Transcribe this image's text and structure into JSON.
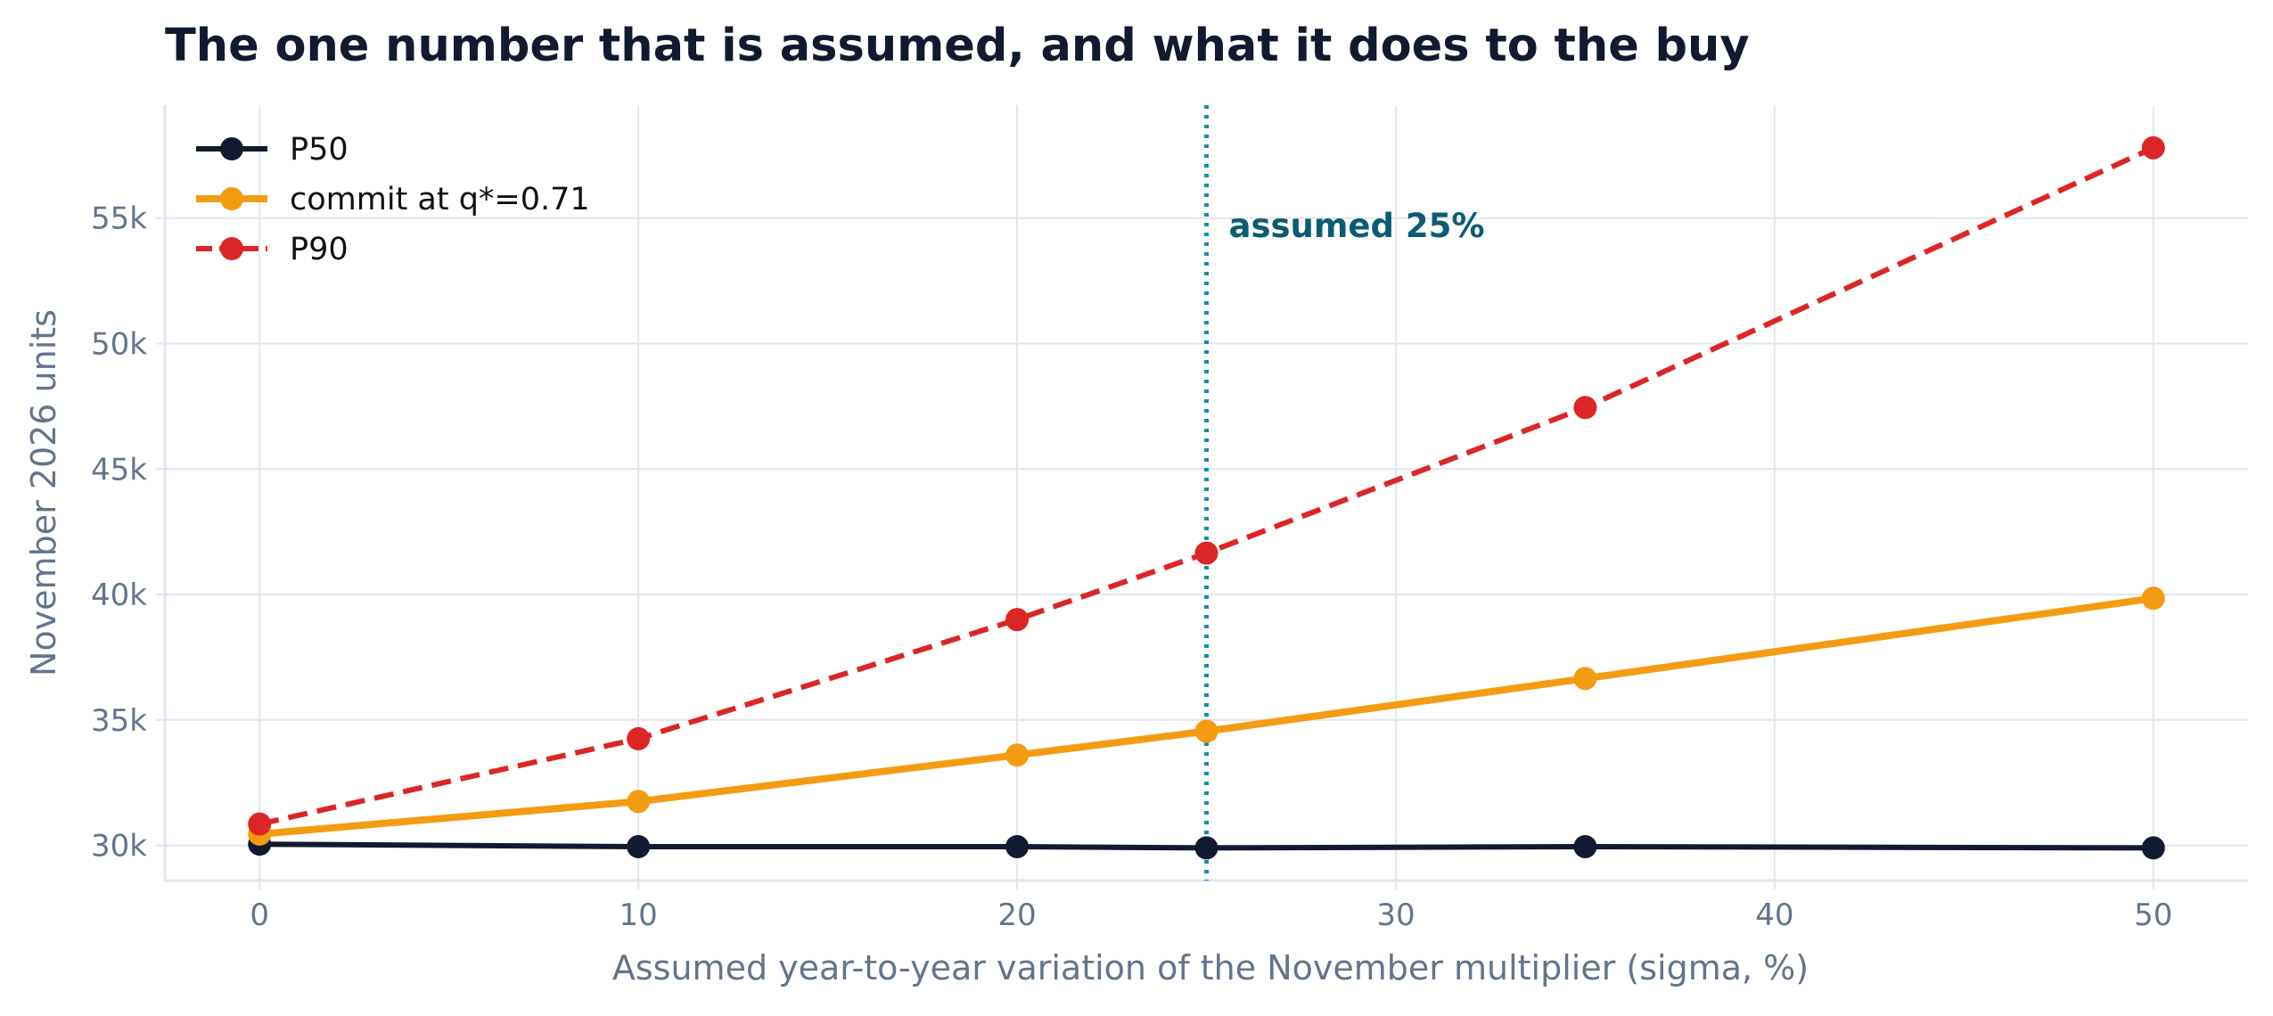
{
  "chart_data": {
    "type": "line",
    "title": "The one number that is assumed, and what it does to the buy",
    "xlabel": "Assumed year-to-year variation of the November multiplier (sigma, %)",
    "ylabel": "November 2026 units",
    "xlim": [
      -2.5,
      52.5
    ],
    "ylim": [
      28600,
      59500
    ],
    "xticks": [
      0,
      10,
      20,
      30,
      40,
      50
    ],
    "xtick_labels": [
      "0",
      "10",
      "20",
      "30",
      "40",
      "50"
    ],
    "yticks": [
      30000,
      35000,
      40000,
      45000,
      50000,
      55000
    ],
    "ytick_labels": [
      "30k",
      "35k",
      "40k",
      "45k",
      "50k",
      "55k"
    ],
    "grid": true,
    "legend_position": "top-left",
    "x": [
      0,
      10,
      20,
      25,
      35,
      50
    ],
    "series": [
      {
        "name": "P50",
        "values": [
          30050,
          29950,
          29950,
          29900,
          29950,
          29900
        ],
        "color": "#111a2e",
        "style": "solid"
      },
      {
        "name": "commit at q*=0.71",
        "values": [
          30450,
          31750,
          33600,
          34550,
          36650,
          39850
        ],
        "color": "#f39c12",
        "style": "solid"
      },
      {
        "name": "P90",
        "values": [
          30850,
          34250,
          39000,
          41650,
          47450,
          57800
        ],
        "color": "#dc2626",
        "style": "dashed"
      }
    ],
    "annotations": [
      {
        "type": "vline",
        "x": 25,
        "label": "assumed 25%",
        "color": "#0e8fa8",
        "text_color": "#0b5c73"
      }
    ]
  }
}
